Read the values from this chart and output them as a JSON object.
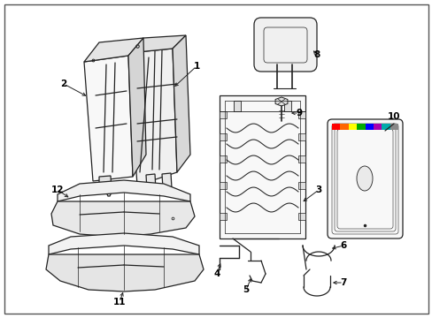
{
  "background_color": "#ffffff",
  "line_color": "#222222",
  "fig_width": 4.89,
  "fig_height": 3.6,
  "dpi": 100,
  "label_fontsize": 7.5,
  "colors_strip": [
    "#ff0000",
    "#ff6600",
    "#ffff00",
    "#00aa00",
    "#0000ff",
    "#aa00aa",
    "#00aaaa",
    "#888888"
  ]
}
